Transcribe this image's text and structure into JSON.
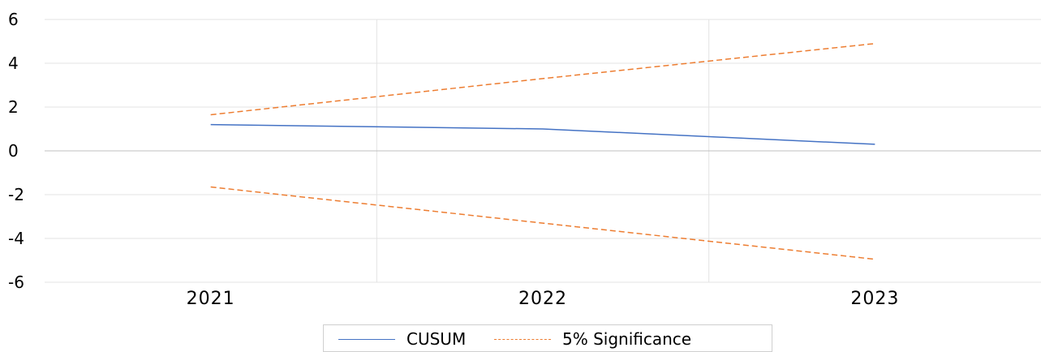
{
  "chart_data": {
    "type": "line",
    "title": "",
    "xlabel": "",
    "ylabel": "",
    "categories": [
      "2021",
      "2022",
      "2023"
    ],
    "ylim": [
      -6,
      6
    ],
    "yticks": [
      -6,
      -4,
      -2,
      0,
      2,
      4,
      6
    ],
    "ytick_labels": [
      "-6",
      "-4",
      "-2",
      "0",
      "2",
      "4",
      "6"
    ],
    "grid": true,
    "legend_position": "bottom",
    "series": [
      {
        "name": "CUSUM",
        "values": [
          1.2,
          1.0,
          0.3
        ],
        "color": "#4472C4",
        "style": "solid"
      },
      {
        "name": "5% Significance",
        "values": [
          1.65,
          3.3,
          4.9
        ],
        "color": "#ED7D31",
        "style": "dashed"
      },
      {
        "name": "",
        "values": [
          -1.65,
          -3.3,
          -4.95
        ],
        "color": "#ED7D31",
        "style": "dashed"
      }
    ]
  },
  "legend": {
    "items": [
      {
        "label": "CUSUM",
        "color": "#4472C4",
        "style": "solid"
      },
      {
        "label": "5% Significance",
        "color": "#ED7D31",
        "style": "dashed"
      }
    ]
  }
}
